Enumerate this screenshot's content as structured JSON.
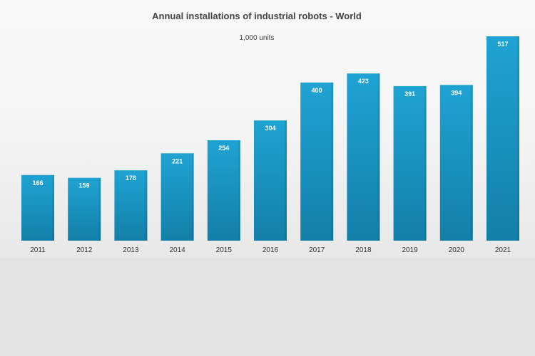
{
  "chart_data": {
    "type": "bar",
    "title": "Annual installations of industrial robots - World",
    "subtitle": "1,000 units",
    "categories": [
      "2011",
      "2012",
      "2013",
      "2014",
      "2015",
      "2016",
      "2017",
      "2018",
      "2019",
      "2020",
      "2021"
    ],
    "values": [
      166,
      159,
      178,
      221,
      254,
      304,
      400,
      423,
      391,
      394,
      517
    ],
    "xlabel": "",
    "ylabel": "",
    "ylim": [
      0,
      517
    ],
    "grid": false,
    "legend": "none",
    "colors": {
      "bar_top": "#1fa3d3",
      "bar_bottom": "#137fa9",
      "label": "#ffffff"
    }
  }
}
